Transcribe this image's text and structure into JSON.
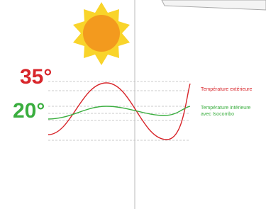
{
  "labels": {
    "high_temp": "35°",
    "low_temp": "20°"
  },
  "legend": {
    "outdoor": "Température extérieure",
    "indoor_line1": "Température intérieure",
    "indoor_line2": "avec Isocombo"
  }
}
